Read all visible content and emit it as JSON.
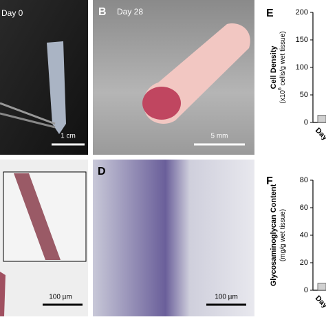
{
  "panels": {
    "a": {
      "day": "Day 0",
      "scale": "1 cm"
    },
    "b": {
      "letter": "B",
      "day": "Day 28",
      "scale": "5 mm"
    },
    "c": {
      "scale": "100 µm"
    },
    "d": {
      "letter": "D",
      "scale": "100 µm"
    }
  },
  "chart_data": [
    {
      "type": "bar",
      "letter": "E",
      "ylabel": "Cell Density",
      "ylabel_units": [
        "(x10",
        "6",
        " cells/g wet tissue)"
      ],
      "categories": [
        "Day"
      ],
      "values": [
        13
      ],
      "color": "#d0d0d0",
      "ylim": [
        0,
        200
      ],
      "yticks": [
        0,
        50,
        100,
        150,
        200
      ]
    },
    {
      "type": "bar",
      "letter": "F",
      "ylabel": "Glycosaminoglycan Content",
      "ylabel_units": [
        "(mg/g wet tissue)"
      ],
      "categories": [
        "Day"
      ],
      "values": [
        5
      ],
      "color": "#d0d0d0",
      "ylim": [
        0,
        80
      ],
      "yticks": [
        0,
        20,
        40,
        60,
        80
      ]
    }
  ]
}
